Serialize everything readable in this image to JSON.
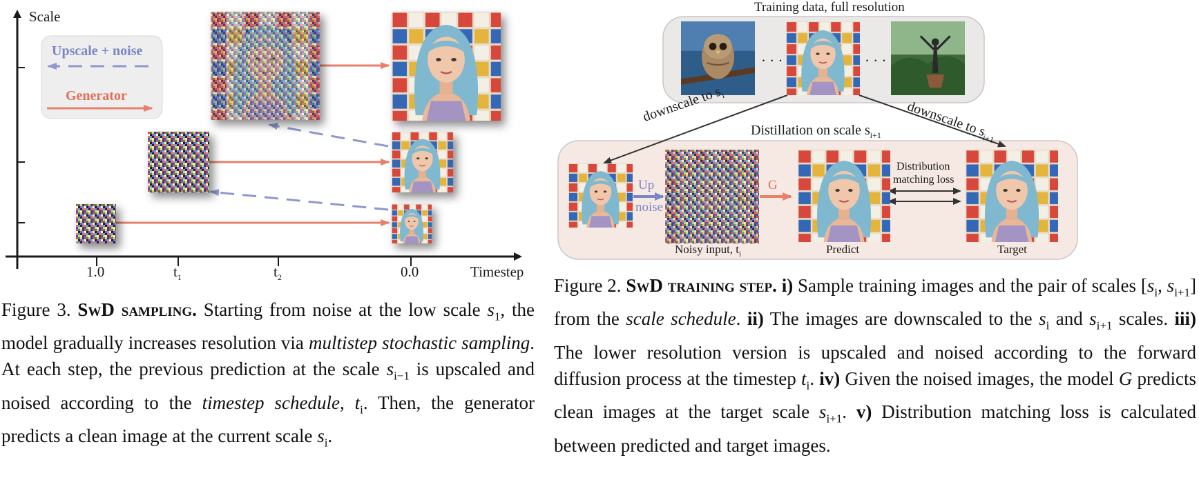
{
  "fig3": {
    "axis_y_label": "Scale",
    "axis_x_label": "Timestep",
    "ticks_x": [
      {
        "main": "1.0",
        "sub": ""
      },
      {
        "main": "t",
        "sub": "1"
      },
      {
        "main": "t",
        "sub": "2"
      },
      {
        "main": "0.0",
        "sub": ""
      }
    ],
    "legend": {
      "upscale": "Upscale + noise",
      "generator": "Generator"
    },
    "colors": {
      "upscale": "#8f97cf",
      "generator": "#e8806c",
      "legend_bg": "#eeeeee"
    }
  },
  "fig2": {
    "training_title": "Training data, full resolution",
    "dots": "· · ·",
    "down_left": "downscale to s",
    "down_left_sub": "i",
    "down_right": "downscale to s",
    "down_right_sub": "i+1",
    "distill_title": "Distillation on scale s",
    "distill_title_sub": "i+1",
    "up_label": "Up",
    "noise_label": "noise",
    "g_label": "G",
    "dm_loss_line1": "Distribution",
    "dm_loss_line2": "matching loss",
    "noisy_input": "Noisy input, t",
    "noisy_input_sub": "i",
    "predict": "Predict",
    "target": "Target"
  },
  "captions": {
    "fig3": {
      "prefix": "Figure 3.",
      "title": "SwD sampling.",
      "t1": " Starting from noise at the low scale ",
      "s1": "s",
      "s1_sub": "1",
      "t2": ", the model gradually increases resolution via ",
      "em1": "multistep stochastic sampling",
      "t3": ". At each step, the previous prediction at the scale ",
      "s2": "s",
      "s2_sub": "i−1",
      "t4": " is upscaled and noised according to the ",
      "em2": "timestep schedule",
      "t5": ", ",
      "t6": "t",
      "t6_sub": "i",
      "t7": ". Then, the generator predicts a clean image at the current scale ",
      "s3": "s",
      "s3_sub": "i",
      "t8": "."
    },
    "fig2": {
      "prefix": "Figure 2.",
      "title": "SwD training step.",
      "r1": " i)",
      "t1": " Sample training images and the pair of scales [",
      "a": "s",
      "a_sub": "i",
      "comma": ", ",
      "b": "s",
      "b_sub": "i+1",
      "t2": "] from the ",
      "em1": "scale schedule",
      "t3": ". ",
      "r2": "ii)",
      "t4": " The images are downscaled to the ",
      "c": "s",
      "c_sub": "i",
      "t5": " and ",
      "d": "s",
      "d_sub": "i+1",
      "t6": " scales. ",
      "r3": "iii)",
      "t7": " The lower resolution version is upscaled and noised according to the forward diffusion process at the timestep ",
      "e": "t",
      "e_sub": "i",
      "t8": ". ",
      "r4": "iv)",
      "t9": " Given the noised images, the model ",
      "g": "G",
      "t10": " predicts clean images at the target scale ",
      "f": "s",
      "f_sub": "i+1",
      "t11": ". ",
      "r5": "v)",
      "t12": " Distribution matching loss is calculated between predicted and target images."
    }
  }
}
